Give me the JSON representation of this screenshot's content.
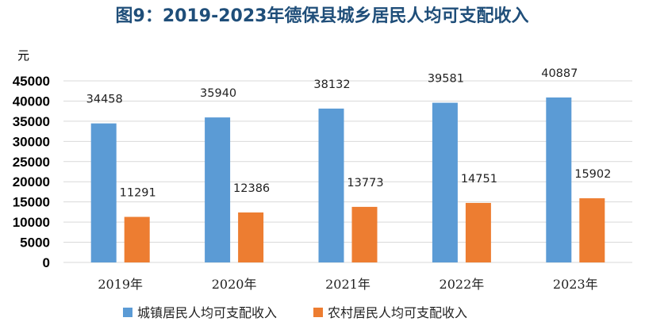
{
  "chart_data": {
    "type": "bar",
    "title": "图9：2019-2023年德保县城乡居民人均可支配收入",
    "ylabel": "元",
    "xlabel": "",
    "categories": [
      "2019年",
      "2020年",
      "2021年",
      "2022年",
      "2023年"
    ],
    "series": [
      {
        "name": "城镇居民人均可支配收入",
        "color": "#5b9bd5",
        "values": [
          34458,
          35940,
          38132,
          39581,
          40887
        ]
      },
      {
        "name": "农村居民人均可支配收入",
        "color": "#ed7d31",
        "values": [
          11291,
          12386,
          13773,
          14751,
          15902
        ]
      }
    ],
    "ylim": [
      0,
      45000
    ],
    "ytick_step": 5000,
    "grid": true,
    "legend_position": "bottom"
  }
}
